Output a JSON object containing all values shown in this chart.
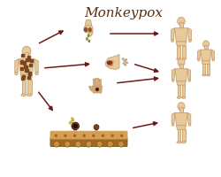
{
  "title": "Monkeypox",
  "title_font": "italic",
  "title_fontsize": 11,
  "title_color": "#5c2d0a",
  "bg_color": "#ffffff",
  "skin_color": "#e8c99a",
  "skin_outline": "#c8a070",
  "spot_color": "#7a4520",
  "arrow_color": "#6b1a1a",
  "drop_color": "#8a9a20",
  "pus_color": "#c8b040",
  "skin_top": "#d4a050",
  "skin_bot": "#a06820",
  "skin_bump": "#c8903a",
  "nose_dark": "#8a5530",
  "mouth_pink": "#d07060",
  "droplet_color": "#b8a888"
}
